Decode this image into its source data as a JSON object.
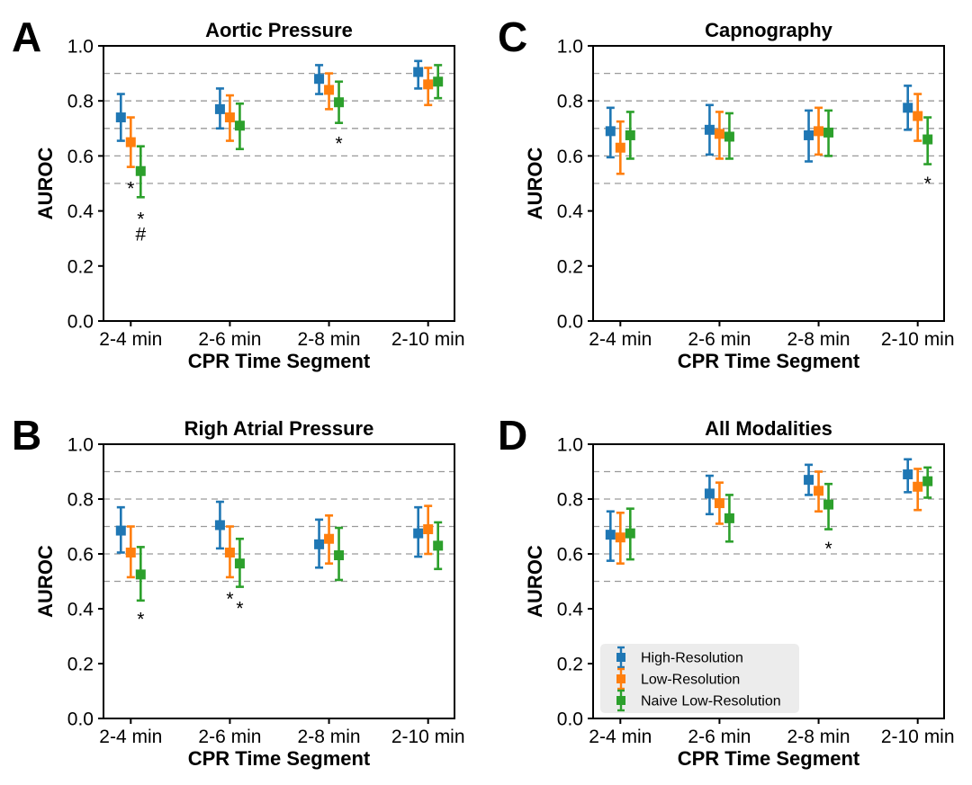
{
  "figure": {
    "background_color": "#ffffff",
    "x_axis_label": "CPR Time Segment",
    "y_axis_label": "AUROC",
    "categories": [
      "2-4 min",
      "2-6 min",
      "2-8 min",
      "2-10 min"
    ],
    "legend": {
      "entries": [
        "High-Resolution",
        "Low-Resolution",
        "Naive Low-Resolution"
      ],
      "colors": [
        "#1f77b4",
        "#ff7f0e",
        "#2ca02c"
      ],
      "background": "#ececec",
      "location": "lower-left-of-panel-D"
    },
    "gridline_color": "#9a9a9a",
    "axis_color": "#000000"
  },
  "chart_data": [
    {
      "panel_letter": "A",
      "title": "Aortic Pressure",
      "type": "errorbar",
      "categories": [
        "2-4 min",
        "2-6 min",
        "2-8 min",
        "2-10 min"
      ],
      "xlabel": "CPR Time Segment",
      "ylabel": "AUROC",
      "ylim": [
        0.0,
        1.0
      ],
      "yticks": [
        0.0,
        0.2,
        0.4,
        0.6,
        0.8,
        1.0
      ],
      "gridlines": [
        0.5,
        0.6,
        0.7,
        0.8,
        0.9
      ],
      "series": [
        {
          "name": "High-Resolution",
          "color": "#1f77b4",
          "values": [
            0.74,
            0.77,
            0.88,
            0.905
          ],
          "lo": [
            0.655,
            0.7,
            0.825,
            0.845
          ],
          "hi": [
            0.825,
            0.845,
            0.93,
            0.945
          ]
        },
        {
          "name": "Low-Resolution",
          "color": "#ff7f0e",
          "values": [
            0.65,
            0.74,
            0.84,
            0.86
          ],
          "lo": [
            0.56,
            0.655,
            0.77,
            0.785
          ],
          "hi": [
            0.74,
            0.82,
            0.9,
            0.92
          ]
        },
        {
          "name": "Naive Low-Resolution",
          "color": "#2ca02c",
          "values": [
            0.545,
            0.71,
            0.795,
            0.87
          ],
          "lo": [
            0.45,
            0.625,
            0.72,
            0.81
          ],
          "hi": [
            0.635,
            0.79,
            0.87,
            0.93
          ]
        }
      ],
      "annotations": [
        {
          "category_index": 0,
          "series_index": 1,
          "symbol": "*",
          "y": 0.485
        },
        {
          "category_index": 0,
          "series_index": 2,
          "symbol": "*",
          "y": 0.375
        },
        {
          "category_index": 0,
          "series_index": 2,
          "symbol": "#",
          "y": 0.318
        },
        {
          "category_index": 2,
          "series_index": 2,
          "symbol": "*",
          "y": 0.648
        }
      ],
      "show_legend": false
    },
    {
      "panel_letter": "B",
      "title": "Righ Atrial Pressure",
      "type": "errorbar",
      "categories": [
        "2-4 min",
        "2-6 min",
        "2-8 min",
        "2-10 min"
      ],
      "xlabel": "CPR Time Segment",
      "ylabel": "AUROC",
      "ylim": [
        0.0,
        1.0
      ],
      "yticks": [
        0.0,
        0.2,
        0.4,
        0.6,
        0.8,
        1.0
      ],
      "gridlines": [
        0.5,
        0.6,
        0.7,
        0.8,
        0.9
      ],
      "series": [
        {
          "name": "High-Resolution",
          "color": "#1f77b4",
          "values": [
            0.685,
            0.705,
            0.635,
            0.675
          ],
          "lo": [
            0.605,
            0.62,
            0.55,
            0.59
          ],
          "hi": [
            0.77,
            0.79,
            0.725,
            0.77
          ]
        },
        {
          "name": "Low-Resolution",
          "color": "#ff7f0e",
          "values": [
            0.605,
            0.605,
            0.655,
            0.69
          ],
          "lo": [
            0.515,
            0.515,
            0.565,
            0.6
          ],
          "hi": [
            0.7,
            0.7,
            0.74,
            0.775
          ]
        },
        {
          "name": "Naive Low-Resolution",
          "color": "#2ca02c",
          "values": [
            0.525,
            0.565,
            0.595,
            0.63
          ],
          "lo": [
            0.43,
            0.48,
            0.505,
            0.545
          ],
          "hi": [
            0.625,
            0.655,
            0.695,
            0.715
          ]
        }
      ],
      "annotations": [
        {
          "category_index": 0,
          "series_index": 2,
          "symbol": "*",
          "y": 0.365
        },
        {
          "category_index": 1,
          "series_index": 1,
          "symbol": "*",
          "y": 0.44
        },
        {
          "category_index": 1,
          "series_index": 2,
          "symbol": "*",
          "y": 0.405
        }
      ],
      "show_legend": false
    },
    {
      "panel_letter": "C",
      "title": "Capnography",
      "type": "errorbar",
      "categories": [
        "2-4 min",
        "2-6 min",
        "2-8 min",
        "2-10 min"
      ],
      "xlabel": "CPR Time Segment",
      "ylabel": "AUROC",
      "ylim": [
        0.0,
        1.0
      ],
      "yticks": [
        0.0,
        0.2,
        0.4,
        0.6,
        0.8,
        1.0
      ],
      "gridlines": [
        0.5,
        0.6,
        0.7,
        0.8,
        0.9
      ],
      "series": [
        {
          "name": "High-Resolution",
          "color": "#1f77b4",
          "values": [
            0.69,
            0.695,
            0.675,
            0.775
          ],
          "lo": [
            0.595,
            0.605,
            0.58,
            0.695
          ],
          "hi": [
            0.775,
            0.785,
            0.765,
            0.855
          ]
        },
        {
          "name": "Low-Resolution",
          "color": "#ff7f0e",
          "values": [
            0.63,
            0.68,
            0.69,
            0.745
          ],
          "lo": [
            0.535,
            0.59,
            0.605,
            0.655
          ],
          "hi": [
            0.725,
            0.76,
            0.775,
            0.825
          ]
        },
        {
          "name": "Naive Low-Resolution",
          "color": "#2ca02c",
          "values": [
            0.675,
            0.67,
            0.685,
            0.66
          ],
          "lo": [
            0.59,
            0.59,
            0.6,
            0.57
          ],
          "hi": [
            0.76,
            0.755,
            0.765,
            0.74
          ]
        }
      ],
      "annotations": [
        {
          "category_index": 3,
          "series_index": 2,
          "symbol": "*",
          "y": 0.503
        }
      ],
      "show_legend": false
    },
    {
      "panel_letter": "D",
      "title": "All Modalities",
      "type": "errorbar",
      "categories": [
        "2-4 min",
        "2-6 min",
        "2-8 min",
        "2-10 min"
      ],
      "xlabel": "CPR Time Segment",
      "ylabel": "AUROC",
      "ylim": [
        0.0,
        1.0
      ],
      "yticks": [
        0.0,
        0.2,
        0.4,
        0.6,
        0.8,
        1.0
      ],
      "gridlines": [
        0.5,
        0.6,
        0.7,
        0.8,
        0.9
      ],
      "series": [
        {
          "name": "High-Resolution",
          "color": "#1f77b4",
          "values": [
            0.67,
            0.82,
            0.87,
            0.89
          ],
          "lo": [
            0.575,
            0.745,
            0.815,
            0.825
          ],
          "hi": [
            0.755,
            0.885,
            0.925,
            0.945
          ]
        },
        {
          "name": "Low-Resolution",
          "color": "#ff7f0e",
          "values": [
            0.66,
            0.785,
            0.83,
            0.845
          ],
          "lo": [
            0.565,
            0.71,
            0.755,
            0.76
          ],
          "hi": [
            0.75,
            0.86,
            0.9,
            0.91
          ]
        },
        {
          "name": "Naive Low-Resolution",
          "color": "#2ca02c",
          "values": [
            0.675,
            0.73,
            0.78,
            0.865
          ],
          "lo": [
            0.58,
            0.645,
            0.69,
            0.805
          ],
          "hi": [
            0.765,
            0.815,
            0.855,
            0.915
          ]
        }
      ],
      "annotations": [
        {
          "category_index": 2,
          "series_index": 2,
          "symbol": "*",
          "y": 0.623
        }
      ],
      "show_legend": true
    }
  ]
}
